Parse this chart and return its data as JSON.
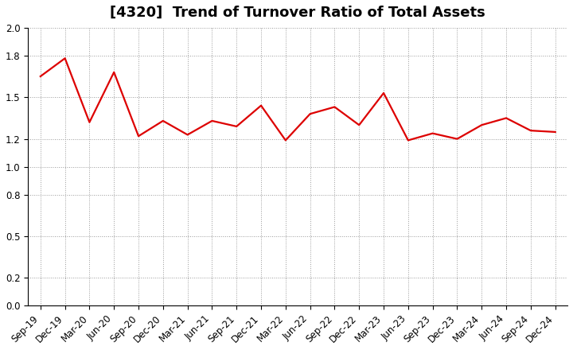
{
  "title": "[4320]  Trend of Turnover Ratio of Total Assets",
  "x_labels": [
    "Sep-19",
    "Dec-19",
    "Mar-20",
    "Jun-20",
    "Sep-20",
    "Dec-20",
    "Mar-21",
    "Jun-21",
    "Sep-21",
    "Dec-21",
    "Mar-22",
    "Jun-22",
    "Sep-22",
    "Dec-22",
    "Mar-23",
    "Jun-23",
    "Sep-23",
    "Dec-23",
    "Mar-24",
    "Jun-24",
    "Sep-24",
    "Dec-24"
  ],
  "values": [
    1.65,
    1.78,
    1.32,
    1.68,
    1.22,
    1.33,
    1.23,
    1.33,
    1.29,
    1.44,
    1.19,
    1.38,
    1.43,
    1.3,
    1.53,
    1.19,
    1.24,
    1.2,
    1.3,
    1.35,
    1.26,
    1.25
  ],
  "line_color": "#dd0000",
  "line_width": 1.6,
  "ylim": [
    0.0,
    2.0
  ],
  "yticks": [
    0.0,
    0.2,
    0.5,
    0.8,
    1.0,
    1.2,
    1.5,
    1.8,
    2.0
  ],
  "background_color": "#ffffff",
  "grid_color": "#999999",
  "title_fontsize": 13,
  "tick_fontsize": 8.5,
  "label_rotation": 45
}
